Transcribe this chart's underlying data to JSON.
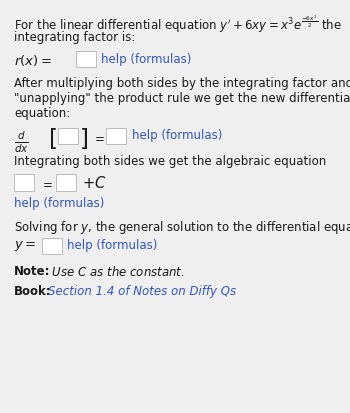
{
  "bg_color": "#efefef",
  "text_color": "#1a1a1a",
  "blue_color": "#3355bb",
  "help_formulas": "help (formulas)",
  "after_text_line1": "After multiplying both sides by the integrating factor and",
  "after_text_line2": "\"unapplying\" the product rule we get the new differential",
  "after_text_line3": "equation:",
  "integrating_text": "Integrating both sides we get the algebraic equation",
  "solving_text": "Solving for $y$, the general solution to the differential equation is",
  "book_link": "Section 1.4 of Notes on Diffy Qs",
  "box_color": "#ffffff",
  "box_edge_color": "#bbbbbb",
  "font_size": 8.5
}
